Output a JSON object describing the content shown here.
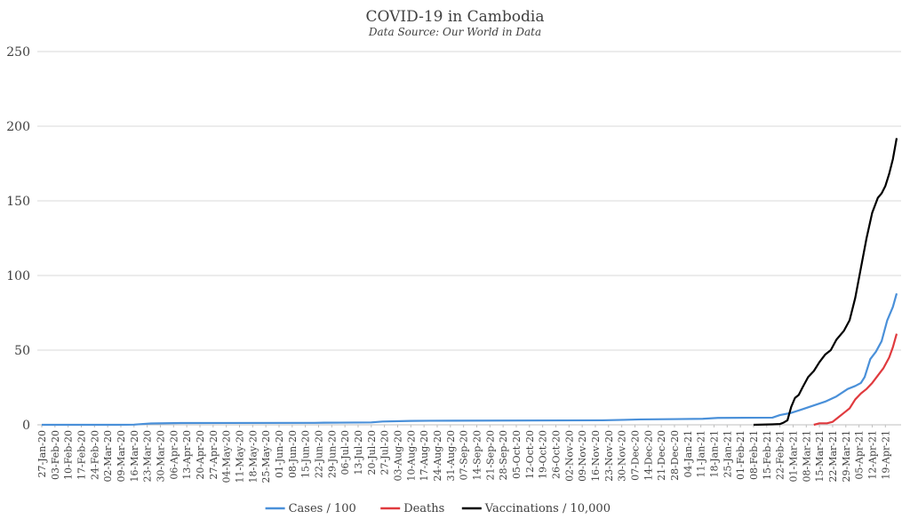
{
  "chart_data": {
    "type": "line",
    "title": "COVID-19 in Cambodia",
    "subtitle": "Data Source: Our World in Data",
    "xlabel": "",
    "ylabel": "",
    "ylim": [
      0,
      250
    ],
    "yticks": [
      0,
      50,
      100,
      150,
      200,
      250
    ],
    "grid": true,
    "legend_position": "bottom",
    "x_range": [
      "2020-01-27",
      "2021-04-25"
    ],
    "x_tick_labels": [
      "27-Jan-20",
      "03-Feb-20",
      "10-Feb-20",
      "17-Feb-20",
      "24-Feb-20",
      "02-Mar-20",
      "09-Mar-20",
      "16-Mar-20",
      "23-Mar-20",
      "30-Mar-20",
      "06-Apr-20",
      "13-Apr-20",
      "20-Apr-20",
      "27-Apr-20",
      "04-May-20",
      "11-May-20",
      "18-May-20",
      "25-May-20",
      "01-Jun-20",
      "08-Jun-20",
      "15-Jun-20",
      "22-Jun-20",
      "29-Jun-20",
      "06-Jul-20",
      "13-Jul-20",
      "20-Jul-20",
      "27-Jul-20",
      "03-Aug-20",
      "10-Aug-20",
      "17-Aug-20",
      "24-Aug-20",
      "31-Aug-20",
      "07-Sep-20",
      "14-Sep-20",
      "21-Sep-20",
      "28-Sep-20",
      "05-Oct-20",
      "12-Oct-20",
      "19-Oct-20",
      "26-Oct-20",
      "02-Nov-20",
      "09-Nov-20",
      "16-Nov-20",
      "23-Nov-20",
      "30-Nov-20",
      "07-Dec-20",
      "14-Dec-20",
      "21-Dec-20",
      "28-Dec-20",
      "04-Jan-21",
      "11-Jan-21",
      "18-Jan-21",
      "25-Jan-21",
      "01-Feb-21",
      "08-Feb-21",
      "15-Feb-21",
      "22-Feb-21",
      "01-Mar-21",
      "08-Mar-21",
      "15-Mar-21",
      "22-Mar-21",
      "29-Mar-21",
      "05-Apr-21",
      "12-Apr-21",
      "19-Apr-21"
    ],
    "series": [
      {
        "name": "Cases / 100",
        "color": "#4a90d9",
        "points": [
          [
            "2020-01-27",
            0.01
          ],
          [
            "2020-03-07",
            0.02
          ],
          [
            "2020-03-16",
            0.1
          ],
          [
            "2020-03-20",
            0.5
          ],
          [
            "2020-03-25",
            0.9
          ],
          [
            "2020-04-10",
            1.2
          ],
          [
            "2020-06-20",
            1.3
          ],
          [
            "2020-06-25",
            1.4
          ],
          [
            "2020-07-20",
            1.6
          ],
          [
            "2020-07-26",
            2.2
          ],
          [
            "2020-08-10",
            2.6
          ],
          [
            "2020-08-20",
            2.7
          ],
          [
            "2020-11-20",
            3.0
          ],
          [
            "2020-12-01",
            3.3
          ],
          [
            "2020-12-10",
            3.6
          ],
          [
            "2021-01-12",
            4.0
          ],
          [
            "2021-01-20",
            4.6
          ],
          [
            "2021-02-18",
            4.8
          ],
          [
            "2021-02-22",
            6.5
          ],
          [
            "2021-02-28",
            8.0
          ],
          [
            "2021-03-05",
            10.0
          ],
          [
            "2021-03-12",
            13.0
          ],
          [
            "2021-03-18",
            15.5
          ],
          [
            "2021-03-24",
            19.0
          ],
          [
            "2021-03-30",
            24.0
          ],
          [
            "2021-04-03",
            26.0
          ],
          [
            "2021-04-06",
            28.0
          ],
          [
            "2021-04-08",
            32.0
          ],
          [
            "2021-04-11",
            44.0
          ],
          [
            "2021-04-14",
            49.0
          ],
          [
            "2021-04-17",
            56.0
          ],
          [
            "2021-04-20",
            70.0
          ],
          [
            "2021-04-23",
            79.0
          ],
          [
            "2021-04-25",
            88.0
          ]
        ]
      },
      {
        "name": "Deaths",
        "color": "#e03a3e",
        "points": [
          [
            "2021-03-12",
            0.0
          ],
          [
            "2021-03-15",
            1.0
          ],
          [
            "2021-03-19",
            1.0
          ],
          [
            "2021-03-22",
            2.0
          ],
          [
            "2021-03-25",
            5.0
          ],
          [
            "2021-03-28",
            8.0
          ],
          [
            "2021-03-31",
            11.0
          ],
          [
            "2021-04-03",
            17.0
          ],
          [
            "2021-04-06",
            21.0
          ],
          [
            "2021-04-09",
            24.0
          ],
          [
            "2021-04-12",
            28.0
          ],
          [
            "2021-04-15",
            33.0
          ],
          [
            "2021-04-18",
            38.0
          ],
          [
            "2021-04-21",
            45.0
          ],
          [
            "2021-04-23",
            52.0
          ],
          [
            "2021-04-25",
            61.0
          ]
        ]
      },
      {
        "name": "Vaccinations / 10,000",
        "color": "#000000",
        "points": [
          [
            "2021-02-08",
            0.0
          ],
          [
            "2021-02-18",
            0.3
          ],
          [
            "2021-02-22",
            0.5
          ],
          [
            "2021-02-24",
            1.5
          ],
          [
            "2021-02-26",
            3.0
          ],
          [
            "2021-02-28",
            12.0
          ],
          [
            "2021-03-02",
            18.0
          ],
          [
            "2021-03-04",
            20.0
          ],
          [
            "2021-03-06",
            25.0
          ],
          [
            "2021-03-09",
            32.0
          ],
          [
            "2021-03-12",
            36.0
          ],
          [
            "2021-03-15",
            42.0
          ],
          [
            "2021-03-18",
            47.0
          ],
          [
            "2021-03-21",
            50.0
          ],
          [
            "2021-03-24",
            57.0
          ],
          [
            "2021-03-28",
            63.0
          ],
          [
            "2021-03-31",
            70.0
          ],
          [
            "2021-04-03",
            85.0
          ],
          [
            "2021-04-06",
            105.0
          ],
          [
            "2021-04-09",
            125.0
          ],
          [
            "2021-04-12",
            142.0
          ],
          [
            "2021-04-15",
            152.0
          ],
          [
            "2021-04-17",
            155.0
          ],
          [
            "2021-04-19",
            160.0
          ],
          [
            "2021-04-21",
            168.0
          ],
          [
            "2021-04-23",
            178.0
          ],
          [
            "2021-04-25",
            192.0
          ]
        ]
      }
    ]
  }
}
